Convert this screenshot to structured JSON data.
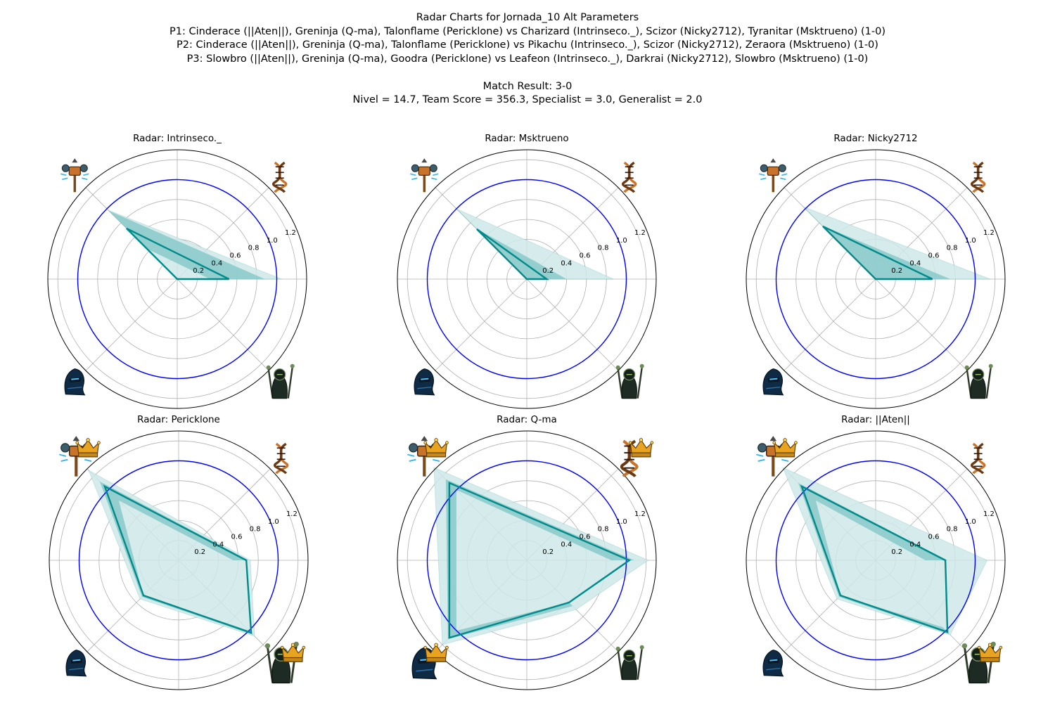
{
  "header": {
    "title": "Radar Charts for Jornada_10 Alt Parameters",
    "p1": "P1: Cinderace (||Aten||), Greninja (Q-ma), Talonflame (Pericklone) vs Charizard (Intrinseco._), Scizor (Nicky2712), Tyranitar (Msktrueno) (1-0)",
    "p2": "P2: Cinderace (||Aten||), Greninja (Q-ma), Talonflame (Pericklone) vs Pikachu (Intrinseco._), Scizor (Nicky2712), Zeraora (Msktrueno) (1-0)",
    "p3": "P3: Slowbro (||Aten||), Greninja (Q-ma), Goodra (Pericklone) vs Leafeon (Intrinseco._), Darkrai (Nicky2712), Slowbro (Msktrueno) (1-0)",
    "match_result": "Match Result: 3-0",
    "stats": "Nivel = 14.7, Team Score = 356.3, Specialist = 3.0, Generalist = 2.0"
  },
  "colors": {
    "series_line": "#008b8b",
    "inner_fill": "#7fc4c4",
    "outer_fill": "#cfe8e8",
    "reference_circle": "#0000ff",
    "grid": "#b0b0b0",
    "icon_gold": "#e8a320",
    "icon_copper": "#c9722a",
    "icon_dark": "#1d2b24",
    "icon_blue": "#2b6fa8"
  },
  "icons": [
    "hammer-staff-icon",
    "dna-icon",
    "wizard-staves-icon",
    "hooded-ninja-icon",
    "crown-icon"
  ],
  "chart_data": [
    {
      "type": "radar",
      "title": "Radar: Intrinseco._",
      "rlim": [
        0,
        1.3
      ],
      "rticks": [
        0.2,
        0.4,
        0.6,
        0.8,
        1.0,
        1.2
      ],
      "reference_circle": 1.0,
      "axes": [
        "dna",
        "hammer-staff",
        "hooded-ninja",
        "wizard-staves"
      ],
      "values": [
        0.52,
        0.72,
        0.0,
        0.0
      ],
      "band_lower": [
        0.33,
        0.43,
        0.0,
        0.0
      ],
      "band_upper": [
        0.88,
        0.97,
        0.0,
        0.0
      ],
      "outer_upper": [
        1.05,
        0.98,
        0.0,
        0.0
      ],
      "crowns": []
    },
    {
      "type": "radar",
      "title": "Radar: Msktrueno",
      "rlim": [
        0,
        1.3
      ],
      "rticks": [
        0.2,
        0.4,
        0.6,
        0.8,
        1.0,
        1.2
      ],
      "reference_circle": 1.0,
      "axes": [
        "dna",
        "hammer-staff",
        "hooded-ninja",
        "wizard-staves"
      ],
      "values": [
        0.2,
        0.71,
        0.0,
        0.0
      ],
      "band_lower": [
        0.2,
        0.0,
        0.0,
        0.0
      ],
      "band_upper": [
        0.4,
        0.72,
        0.0,
        0.0
      ],
      "outer_upper": [
        0.87,
        1.0,
        0.0,
        0.0
      ],
      "crowns": []
    },
    {
      "type": "radar",
      "title": "Radar: Nicky2712",
      "rlim": [
        0,
        1.3
      ],
      "rticks": [
        0.2,
        0.4,
        0.6,
        0.8,
        1.0,
        1.2
      ],
      "reference_circle": 1.0,
      "axes": [
        "dna",
        "hammer-staff",
        "hooded-ninja",
        "wizard-staves"
      ],
      "values": [
        0.57,
        0.75,
        0.0,
        0.0
      ],
      "band_lower": [
        0.4,
        0.0,
        0.0,
        0.0
      ],
      "band_upper": [
        0.75,
        0.76,
        0.0,
        0.0
      ],
      "outer_upper": [
        1.15,
        1.03,
        0.0,
        0.0
      ],
      "crowns": []
    },
    {
      "type": "radar",
      "title": "Radar: Pericklone",
      "rlim": [
        0,
        1.3
      ],
      "rticks": [
        0.2,
        0.4,
        0.6,
        0.8,
        1.0,
        1.2
      ],
      "reference_circle": 1.0,
      "axes": [
        "dna",
        "hammer-staff",
        "hooded-ninja",
        "wizard-staves"
      ],
      "values": [
        0.68,
        1.05,
        0.5,
        1.03
      ],
      "band_lower": [
        0.55,
        0.85,
        0.5,
        1.0
      ],
      "band_upper": [
        0.7,
        1.12,
        0.52,
        1.06
      ],
      "outer_upper": [
        0.72,
        1.28,
        0.55,
        1.08
      ],
      "crowns": [
        "hammer-staff",
        "wizard-staves"
      ]
    },
    {
      "type": "radar",
      "title": "Radar: Q-ma",
      "rlim": [
        0,
        1.3
      ],
      "rticks": [
        0.2,
        0.4,
        0.6,
        0.8,
        1.0,
        1.2
      ],
      "reference_circle": 1.0,
      "axes": [
        "dna",
        "hammer-staff",
        "hooded-ninja",
        "wizard-staves"
      ],
      "values": [
        1.03,
        1.1,
        1.1,
        0.6
      ],
      "band_lower": [
        0.85,
        1.0,
        1.0,
        0.6
      ],
      "band_upper": [
        1.08,
        1.15,
        1.12,
        0.65
      ],
      "outer_upper": [
        1.22,
        1.32,
        1.2,
        0.7
      ],
      "crowns": [
        "dna",
        "hammer-staff",
        "hooded-ninja"
      ]
    },
    {
      "type": "radar",
      "title": "Radar: ||Aten||",
      "rlim": [
        0,
        1.3
      ],
      "rticks": [
        0.2,
        0.4,
        0.6,
        0.8,
        1.0,
        1.2
      ],
      "reference_circle": 1.0,
      "axes": [
        "dna",
        "hammer-staff",
        "hooded-ninja",
        "wizard-staves"
      ],
      "values": [
        0.7,
        1.05,
        0.5,
        1.02
      ],
      "band_lower": [
        0.5,
        0.85,
        0.5,
        0.95
      ],
      "band_upper": [
        0.72,
        1.1,
        0.52,
        1.05
      ],
      "outer_upper": [
        1.12,
        1.32,
        0.55,
        1.06
      ],
      "crowns": [
        "hammer-staff",
        "wizard-staves"
      ]
    }
  ]
}
